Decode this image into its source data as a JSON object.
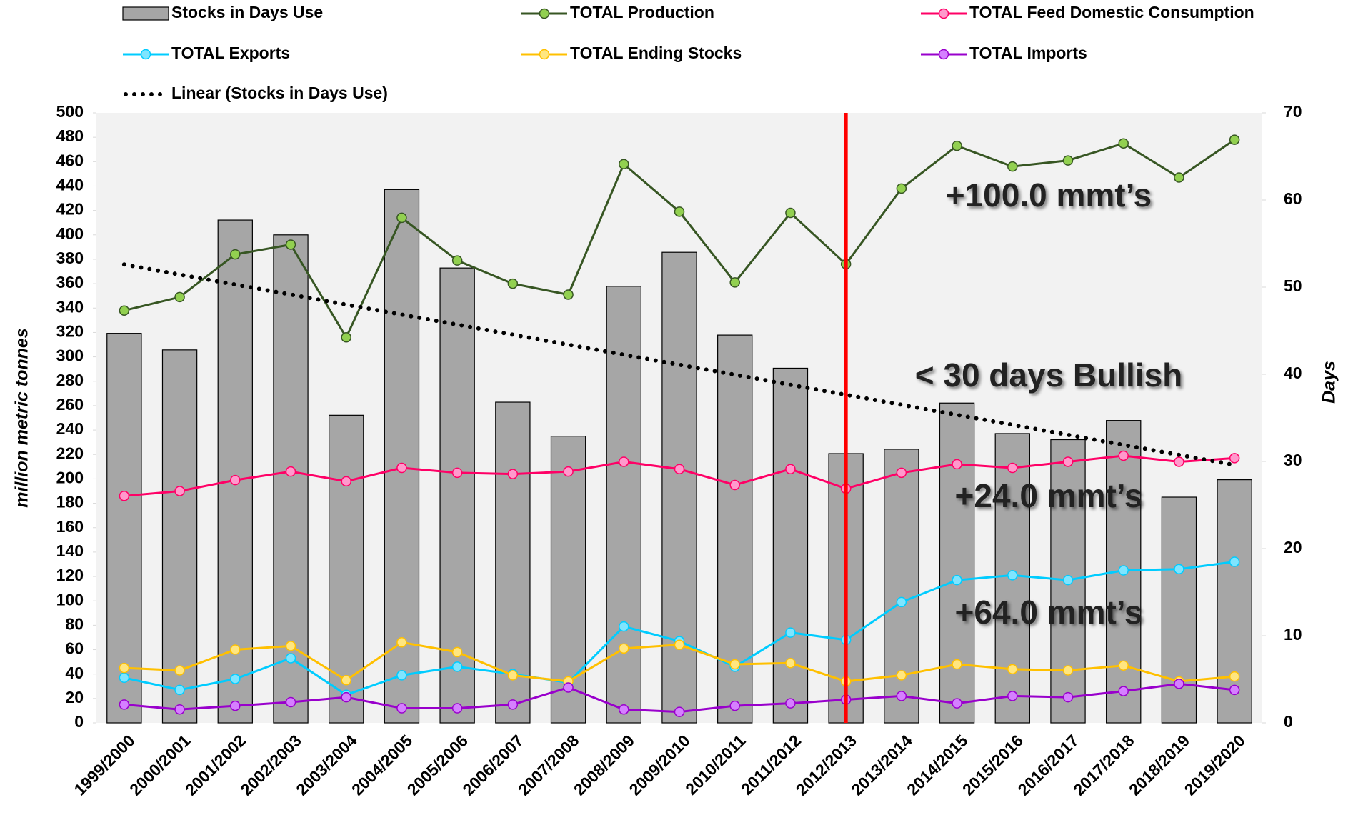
{
  "chart_data": {
    "type": "combo",
    "categories": [
      "1999/2000",
      "2000/2001",
      "2001/2002",
      "2002/2003",
      "2003/2004",
      "2004/2005",
      "2005/2006",
      "2006/2007",
      "2007/2008",
      "2008/2009",
      "2009/2010",
      "2010/2011",
      "2011/2012",
      "2012/2013",
      "2013/2014",
      "2014/2015",
      "2015/2016",
      "2016/2017",
      "2017/2018",
      "2018/2019",
      "2019/2020"
    ],
    "series": [
      {
        "name": "Stocks in Days Use",
        "type": "bar",
        "axis": "y2",
        "color": "#a6a6a6",
        "values": [
          44.7,
          42.8,
          57.7,
          56,
          35.3,
          61.2,
          52.2,
          36.8,
          32.9,
          50.1,
          54,
          44.5,
          40.7,
          30.9,
          31.4,
          36.7,
          33.2,
          32.5,
          34.7,
          25.9,
          27.9
        ]
      },
      {
        "name": "TOTAL Production",
        "type": "line",
        "color": "#375623",
        "marker": "#92d050",
        "values": [
          338,
          349,
          384,
          392,
          316,
          414,
          379,
          360,
          351,
          458,
          419,
          361,
          418,
          376,
          438,
          473,
          456,
          461,
          475,
          447,
          478
        ]
      },
      {
        "name": "TOTAL Feed Domestic Consumption",
        "type": "line",
        "color": "#ff0066",
        "marker": "#ff99cc",
        "values": [
          186,
          190,
          199,
          206,
          198,
          209,
          205,
          204,
          206,
          214,
          208,
          195,
          208,
          192,
          205,
          212,
          209,
          214,
          219,
          214,
          217
        ]
      },
      {
        "name": "TOTAL Exports",
        "type": "line",
        "color": "#00ccff",
        "marker": "#7fe5ff",
        "values": [
          37,
          27,
          36,
          53,
          23,
          39,
          46,
          40,
          33,
          79,
          67,
          46,
          74,
          68,
          99,
          117,
          121,
          117,
          125,
          126,
          132
        ]
      },
      {
        "name": "TOTAL Ending Stocks",
        "type": "line",
        "color": "#ffc000",
        "marker": "#ffe680",
        "values": [
          45,
          43,
          60,
          63,
          35,
          66,
          58,
          39,
          34,
          61,
          64,
          48,
          49,
          34,
          39,
          48,
          44,
          43,
          47,
          34,
          38
        ]
      },
      {
        "name": "TOTAL Imports",
        "type": "line",
        "color": "#9900cc",
        "marker": "#d580ff",
        "values": [
          15,
          11,
          14,
          17,
          21,
          12,
          12,
          15,
          29,
          11,
          9,
          14,
          16,
          19,
          22,
          16,
          22,
          21,
          26,
          32,
          27
        ]
      },
      {
        "name": "Linear (Stocks in Days Use)",
        "type": "trend",
        "axis": "y2",
        "color": "#000000",
        "values": [
          52.6,
          51.45,
          50.3,
          49.15,
          48.0,
          46.85,
          45.7,
          44.55,
          43.4,
          42.25,
          41.1,
          39.95,
          38.8,
          37.65,
          36.5,
          35.35,
          34.2,
          33.05,
          31.9,
          30.75,
          29.6
        ]
      }
    ],
    "ylabel": "million  metric tonnes",
    "y2label": "Days",
    "ylim": [
      0,
      500
    ],
    "yticks": [
      0,
      20,
      40,
      60,
      80,
      100,
      120,
      140,
      160,
      180,
      200,
      220,
      240,
      260,
      280,
      300,
      320,
      340,
      360,
      380,
      400,
      420,
      440,
      460,
      480,
      500
    ],
    "y2lim": [
      0,
      70
    ],
    "y2ticks": [
      0,
      10,
      20,
      30,
      40,
      50,
      60,
      70
    ],
    "grid": false,
    "legend": "top",
    "vline": {
      "category": "2012/2013",
      "color": "#ff0000"
    },
    "annotations": [
      "+100.0 mmt’s",
      "< 30 days Bullish",
      "+24.0 mmt’s",
      "+64.0 mmt’s"
    ]
  }
}
